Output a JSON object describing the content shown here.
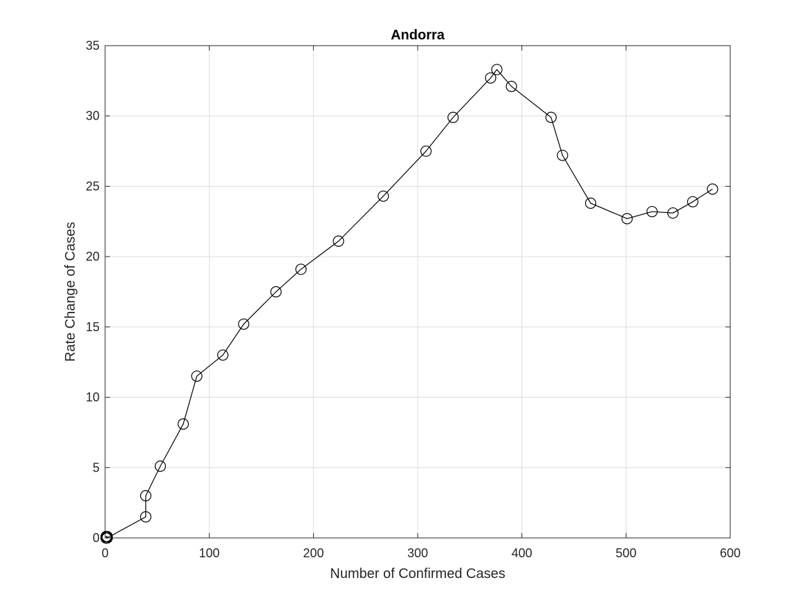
{
  "chart_data": {
    "type": "line",
    "title": "Andorra",
    "xlabel": "Number of Confirmed Cases",
    "ylabel": "Rate Change of Cases",
    "xlim": [
      0,
      600
    ],
    "ylim": [
      0,
      35
    ],
    "xticks": [
      0,
      100,
      200,
      300,
      400,
      500,
      600
    ],
    "yticks": [
      0,
      5,
      10,
      15,
      20,
      25,
      30,
      35
    ],
    "grid": true,
    "legend": "none",
    "line_color": "#000000",
    "marker": "circle",
    "series": [
      {
        "x": [
          1,
          1,
          1,
          1,
          1,
          1,
          2,
          2,
          39,
          39,
          53,
          75,
          88,
          113,
          133,
          164,
          188,
          224,
          267,
          308,
          334,
          370,
          376,
          390,
          428,
          439,
          466,
          501,
          525,
          545,
          564,
          583
        ],
        "y": [
          0,
          0,
          0,
          0,
          0,
          0.1,
          0.1,
          0,
          1.5,
          3.0,
          5.1,
          8.1,
          11.5,
          13.0,
          15.2,
          17.5,
          19.1,
          21.1,
          24.3,
          27.5,
          29.9,
          32.7,
          33.3,
          32.1,
          29.9,
          27.2,
          23.8,
          22.7,
          23.2,
          23.1,
          23.9,
          24.8
        ]
      }
    ]
  }
}
